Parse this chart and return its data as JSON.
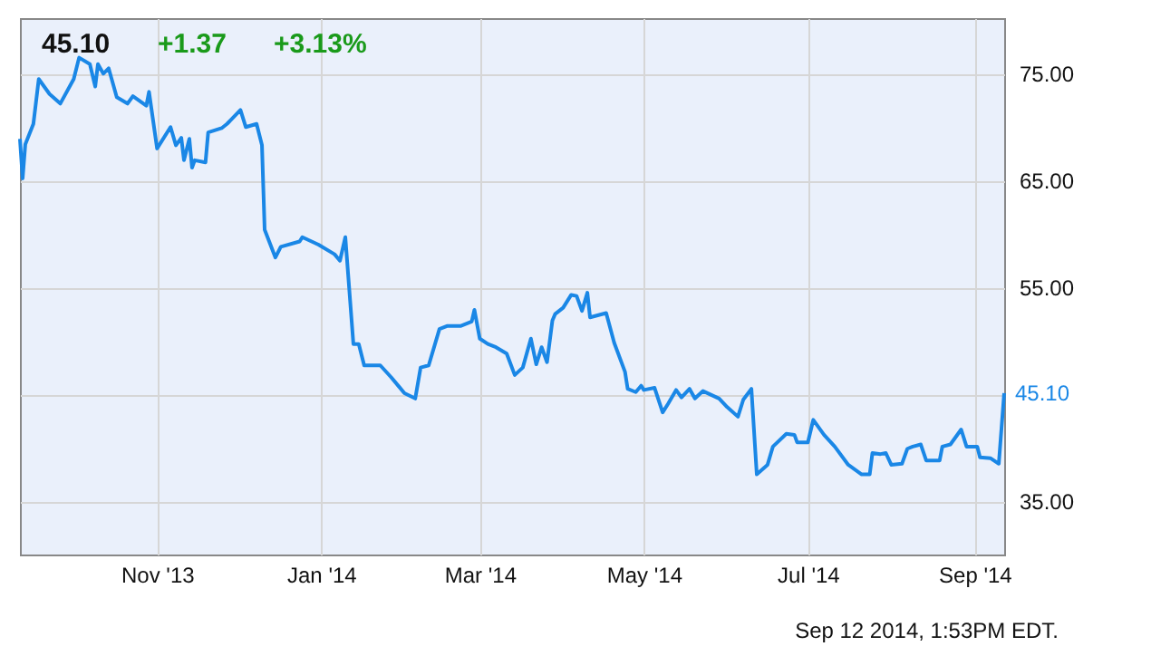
{
  "chart_data": {
    "type": "line",
    "title": "45.10",
    "subtitle": "+1.37 +3.13%",
    "annotations": [
      {
        "text": "45.10",
        "x": "2014-09-12",
        "y": 45.1
      },
      "Sep 12 2014, 1:53PM EDT."
    ],
    "x": [
      "2013-09-11",
      "2013-09-12",
      "2013-09-13",
      "2013-09-16",
      "2013-09-18",
      "2013-09-22",
      "2013-09-26",
      "2013-10-01",
      "2013-10-03",
      "2013-10-07",
      "2013-10-09",
      "2013-10-10",
      "2013-10-12",
      "2013-10-14",
      "2013-10-17",
      "2013-10-21",
      "2013-10-23",
      "2013-10-28",
      "2013-10-29",
      "2013-11-01",
      "2013-11-06",
      "2013-11-08",
      "2013-11-10",
      "2013-11-11",
      "2013-11-13",
      "2013-11-14",
      "2013-11-15",
      "2013-11-19",
      "2013-11-20",
      "2013-11-25",
      "2013-11-27",
      "2013-12-02",
      "2013-12-04",
      "2013-12-08",
      "2013-12-10",
      "2013-12-11",
      "2013-12-15",
      "2013-12-17",
      "2013-12-24",
      "2013-12-25",
      "2013-12-31",
      "2014-01-06",
      "2014-01-08",
      "2014-01-10",
      "2014-01-13",
      "2014-01-15",
      "2014-01-17",
      "2014-01-23",
      "2014-01-27",
      "2014-01-30",
      "2014-02-01",
      "2014-02-05",
      "2014-02-07",
      "2014-02-10",
      "2014-02-14",
      "2014-02-17",
      "2014-02-22",
      "2014-02-26",
      "2014-02-27",
      "2014-03-01",
      "2014-03-04",
      "2014-03-07",
      "2014-03-11",
      "2014-03-14",
      "2014-03-17",
      "2014-03-20",
      "2014-03-22",
      "2014-03-24",
      "2014-03-26",
      "2014-03-28",
      "2014-03-29",
      "2014-04-01",
      "2014-04-04",
      "2014-04-06",
      "2014-04-08",
      "2014-04-10",
      "2014-04-11",
      "2014-04-17",
      "2014-04-20",
      "2014-04-24",
      "2014-04-25",
      "2014-04-28",
      "2014-04-30",
      "2014-05-01",
      "2014-05-05",
      "2014-05-08",
      "2014-05-10",
      "2014-05-13",
      "2014-05-15",
      "2014-05-18",
      "2014-05-20",
      "2014-05-23",
      "2014-05-29",
      "2014-06-01",
      "2014-06-05",
      "2014-06-07",
      "2014-06-10",
      "2014-06-12",
      "2014-06-16",
      "2014-06-18",
      "2014-06-23",
      "2014-06-26",
      "2014-06-27",
      "2014-07-01",
      "2014-07-03",
      "2014-07-07",
      "2014-07-11",
      "2014-07-16",
      "2014-07-21",
      "2014-07-24",
      "2014-07-25",
      "2014-07-28",
      "2014-07-30",
      "2014-08-01",
      "2014-08-05",
      "2014-08-07",
      "2014-08-09",
      "2014-08-12",
      "2014-08-14",
      "2014-08-19",
      "2014-08-20",
      "2014-08-23",
      "2014-08-27",
      "2014-08-29",
      "2014-09-02",
      "2014-09-03",
      "2014-09-07",
      "2014-09-10",
      "2014-09-12"
    ],
    "series": [
      {
        "color": "#1a87e6",
        "values": [
          68.9,
          65.2,
          68.4,
          70.3,
          74.5,
          73.1,
          72.2,
          74.5,
          76.5,
          75.9,
          73.8,
          75.9,
          75.0,
          75.5,
          72.8,
          72.2,
          72.9,
          72.0,
          73.3,
          68.0,
          70.0,
          68.3,
          69.0,
          66.9,
          68.9,
          66.2,
          66.9,
          66.7,
          69.5,
          69.9,
          70.3,
          71.6,
          70.0,
          70.3,
          68.3,
          60.4,
          57.8,
          58.8,
          59.3,
          59.7,
          59.0,
          58.1,
          57.5,
          59.7,
          49.7,
          49.7,
          47.7,
          47.7,
          46.6,
          45.7,
          45.1,
          44.6,
          47.5,
          47.7,
          51.1,
          51.4,
          51.4,
          51.8,
          52.9,
          50.2,
          49.7,
          49.4,
          48.8,
          46.8,
          47.5,
          50.2,
          47.8,
          49.4,
          48.0,
          51.9,
          52.5,
          53.1,
          54.3,
          54.2,
          52.8,
          54.5,
          52.2,
          52.6,
          49.8,
          47.1,
          45.5,
          45.2,
          45.8,
          45.4,
          45.6,
          43.3,
          44.1,
          45.4,
          44.7,
          45.5,
          44.6,
          45.3,
          44.6,
          43.8,
          42.9,
          44.5,
          45.5,
          37.5,
          38.4,
          40.1,
          41.3,
          41.2,
          40.5,
          40.5,
          42.6,
          41.2,
          40.1,
          38.4,
          37.5,
          37.5,
          39.5,
          39.4,
          39.5,
          38.4,
          38.5,
          39.9,
          40.1,
          40.3,
          38.8,
          38.8,
          40.1,
          40.3,
          41.7,
          40.1,
          40.1,
          39.1,
          39.0,
          38.5,
          45.1
        ]
      }
    ],
    "xlim": [
      "2013-09-11",
      "2014-09-12"
    ],
    "xticks": [
      {
        "value": "2013-11-01",
        "label": "Nov '13"
      },
      {
        "value": "2014-01-01",
        "label": "Jan '14"
      },
      {
        "value": "2014-03-01",
        "label": "Mar '14"
      },
      {
        "value": "2014-05-01",
        "label": "May '14"
      },
      {
        "value": "2014-07-01",
        "label": "Jul '14"
      },
      {
        "value": "2014-09-01",
        "label": "Sep '14"
      }
    ],
    "ylim": [
      30,
      80.2
    ],
    "yticks": [
      {
        "value": 35,
        "label": "35.00"
      },
      {
        "value": 45,
        "label": null
      },
      {
        "value": 55,
        "label": "55.00"
      },
      {
        "value": 65,
        "label": "65.00"
      },
      {
        "value": 75,
        "label": "75.00"
      }
    ],
    "grid": true,
    "marker": "none",
    "line_style": "solid"
  }
}
